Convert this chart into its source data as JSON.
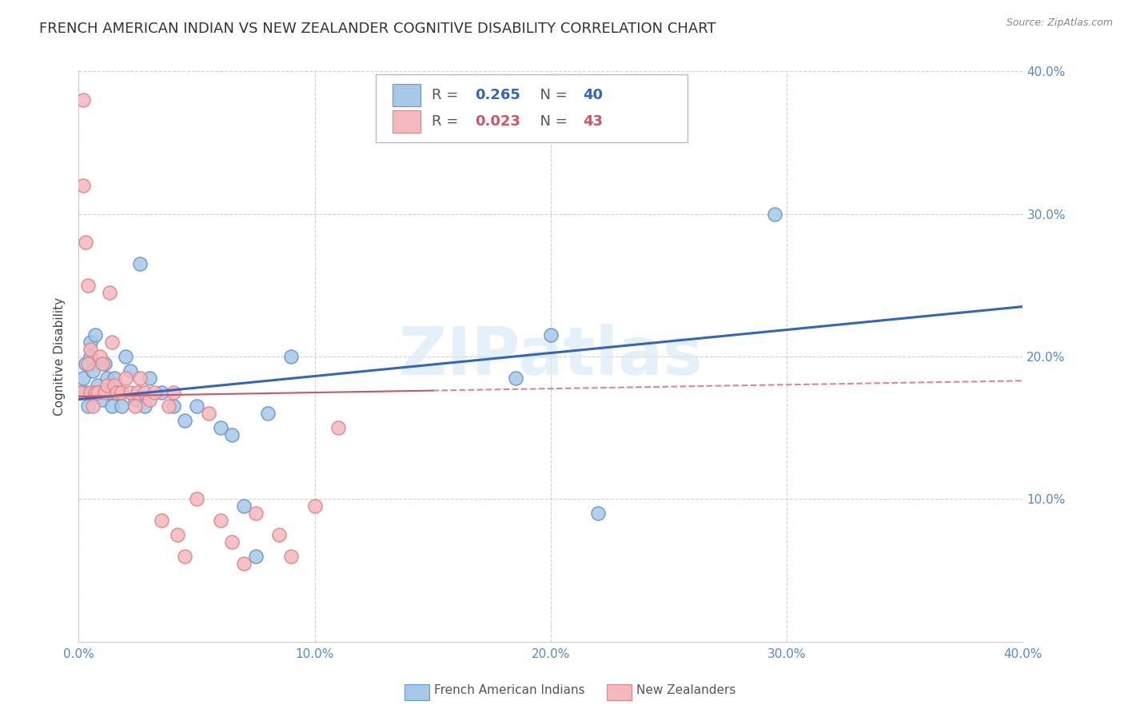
{
  "title": "FRENCH AMERICAN INDIAN VS NEW ZEALANDER COGNITIVE DISABILITY CORRELATION CHART",
  "source": "Source: ZipAtlas.com",
  "ylabel": "Cognitive Disability",
  "xlim": [
    0.0,
    0.4
  ],
  "ylim": [
    0.0,
    0.4
  ],
  "xticks": [
    0.0,
    0.1,
    0.2,
    0.3,
    0.4
  ],
  "yticks": [
    0.1,
    0.2,
    0.3,
    0.4
  ],
  "blue_R": 0.265,
  "blue_N": 40,
  "pink_R": 0.023,
  "pink_N": 43,
  "blue_color": "#a8c8e8",
  "pink_color": "#f4b8c0",
  "blue_edge_color": "#6699cc",
  "pink_edge_color": "#dd8888",
  "blue_line_color": "#3366bb",
  "pink_line_color": "#cc5566",
  "tick_color": "#5588cc",
  "legend_label_blue": "French American Indians",
  "legend_label_pink": "New Zealanders",
  "watermark": "ZIPatlas",
  "title_fontsize": 13,
  "axis_label_fontsize": 11,
  "tick_fontsize": 11,
  "blue_x": [
    0.001,
    0.002,
    0.003,
    0.003,
    0.004,
    0.005,
    0.005,
    0.006,
    0.007,
    0.008,
    0.009,
    0.01,
    0.011,
    0.012,
    0.013,
    0.014,
    0.015,
    0.016,
    0.017,
    0.018,
    0.02,
    0.022,
    0.024,
    0.026,
    0.028,
    0.03,
    0.035,
    0.04,
    0.045,
    0.05,
    0.06,
    0.065,
    0.07,
    0.075,
    0.08,
    0.09,
    0.2,
    0.22,
    0.295,
    0.185
  ],
  "blue_y": [
    0.175,
    0.185,
    0.195,
    0.175,
    0.165,
    0.2,
    0.21,
    0.19,
    0.215,
    0.18,
    0.175,
    0.17,
    0.195,
    0.185,
    0.175,
    0.165,
    0.185,
    0.175,
    0.175,
    0.165,
    0.2,
    0.19,
    0.17,
    0.265,
    0.165,
    0.185,
    0.175,
    0.165,
    0.155,
    0.165,
    0.15,
    0.145,
    0.095,
    0.06,
    0.16,
    0.2,
    0.215,
    0.09,
    0.3,
    0.185
  ],
  "pink_x": [
    0.001,
    0.002,
    0.002,
    0.003,
    0.004,
    0.004,
    0.005,
    0.005,
    0.006,
    0.007,
    0.008,
    0.009,
    0.01,
    0.011,
    0.012,
    0.013,
    0.014,
    0.015,
    0.016,
    0.018,
    0.02,
    0.022,
    0.024,
    0.025,
    0.026,
    0.028,
    0.03,
    0.032,
    0.035,
    0.038,
    0.04,
    0.042,
    0.045,
    0.05,
    0.055,
    0.06,
    0.065,
    0.07,
    0.075,
    0.085,
    0.09,
    0.1,
    0.11
  ],
  "pink_y": [
    0.175,
    0.38,
    0.32,
    0.28,
    0.25,
    0.195,
    0.205,
    0.175,
    0.165,
    0.175,
    0.175,
    0.2,
    0.195,
    0.175,
    0.18,
    0.245,
    0.21,
    0.18,
    0.175,
    0.175,
    0.185,
    0.175,
    0.165,
    0.175,
    0.185,
    0.175,
    0.17,
    0.175,
    0.085,
    0.165,
    0.175,
    0.075,
    0.06,
    0.1,
    0.16,
    0.085,
    0.07,
    0.055,
    0.09,
    0.075,
    0.06,
    0.095,
    0.15
  ],
  "background_color": "#ffffff",
  "grid_color": "#cccccc"
}
